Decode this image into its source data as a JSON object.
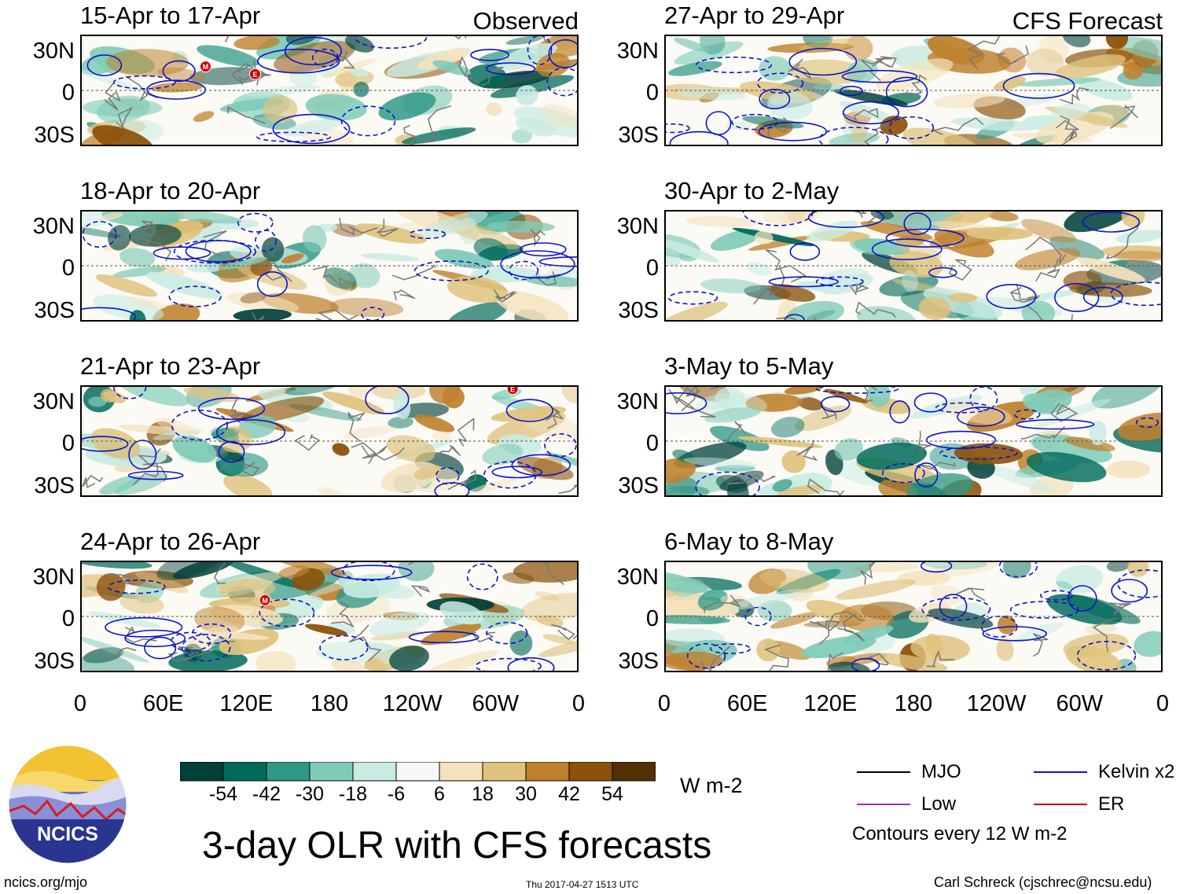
{
  "panels": [
    {
      "title": "15-Apr to 17-Apr",
      "tag": "Observed",
      "markers": [
        {
          "label": "M",
          "lon": 0.25,
          "lat": 0.72
        },
        {
          "label": "E",
          "lon": 0.35,
          "lat": 0.65
        }
      ]
    },
    {
      "title": "18-Apr to 20-Apr",
      "tag": "",
      "markers": []
    },
    {
      "title": "21-Apr to 23-Apr",
      "tag": "",
      "markers": [
        {
          "label": "E",
          "lon": 0.87,
          "lat": 0.98
        }
      ]
    },
    {
      "title": "24-Apr to 26-Apr",
      "tag": "",
      "markers": [
        {
          "label": "M",
          "lon": 0.37,
          "lat": 0.65
        }
      ]
    },
    {
      "title": "27-Apr to 29-Apr",
      "tag": "CFS Forecast",
      "markers": []
    },
    {
      "title": "30-Apr to 2-May",
      "tag": "",
      "markers": []
    },
    {
      "title": "3-May to 5-May",
      "tag": "",
      "markers": []
    },
    {
      "title": "6-May to 8-May",
      "tag": "",
      "markers": []
    }
  ],
  "y_axis": [
    "30N",
    "0",
    "30S"
  ],
  "x_axis": [
    "0",
    "60E",
    "120E",
    "180",
    "120W",
    "60W",
    "0"
  ],
  "colorbar": {
    "colors": [
      "#00403a",
      "#016b5b",
      "#2f9886",
      "#7fcbb7",
      "#c9ebe3",
      "#f7f7f7",
      "#f5e2bd",
      "#dfc27d",
      "#bf812d",
      "#8c510a",
      "#543005"
    ],
    "ticks": [
      "-54",
      "-42",
      "-30",
      "-18",
      "-6",
      "6",
      "18",
      "30",
      "42",
      "54"
    ],
    "unit": "W m-2"
  },
  "legend": {
    "items": [
      {
        "label": "MJO",
        "color": "#000000"
      },
      {
        "label": "Kelvin x2",
        "color": "#0a14c8"
      },
      {
        "label": "Low",
        "color": "#9632c8"
      },
      {
        "label": "ER",
        "color": "#c80000"
      }
    ],
    "note": "Contours every 12 W m-2"
  },
  "logo_text": "NCICS",
  "main_title": "3-day OLR with CFS forecasts",
  "footer": {
    "left": "ncics.org/mjo",
    "center": "Thu 2017-04-27 1513 UTC",
    "right": "Carl Schreck (cjschrec@ncsu.edu)"
  }
}
